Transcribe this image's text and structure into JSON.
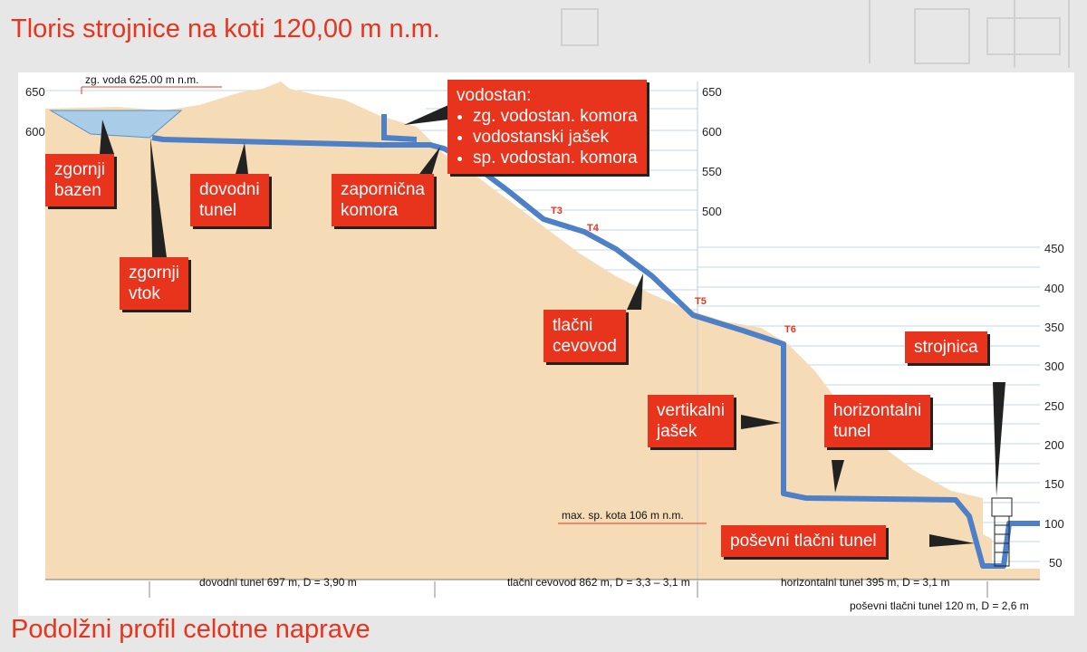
{
  "titles": {
    "top": "Tloris strojnice na koti 120,00 m n.m.",
    "bottom": "Podolžni profil celotne naprave"
  },
  "axes": {
    "left_ticks": [
      "650",
      "600"
    ],
    "mid_ticks": [
      "650",
      "600",
      "550",
      "500"
    ],
    "right_ticks": [
      "450",
      "400",
      "350",
      "300",
      "250",
      "200",
      "150",
      "100",
      "50"
    ]
  },
  "annotations": {
    "upper_water": "zg. voda 625.00 m n.m.",
    "max_lower": "max. sp. kota 106 m n.m."
  },
  "callouts": {
    "vodostan_title": "vodostan:",
    "vodostan_items": [
      "zg. vodostan. komora",
      "vodostanski jašek",
      "sp. vodostan. komora"
    ],
    "zgornji_bazen": [
      "zgornji",
      "bazen"
    ],
    "dovodni_tunel": [
      "dovodni",
      "tunel"
    ],
    "zapornicna_komora": [
      "zapornična",
      "komora"
    ],
    "zgornji_vtok": [
      "zgornji",
      "vtok"
    ],
    "tlacni_cevovod": [
      "tlačni",
      "cevovod"
    ],
    "vertikalni_jasek": [
      "vertikalni",
      "jašek"
    ],
    "horizontalni_tunel": [
      "horizontalni",
      "tunel"
    ],
    "strojnica": "strojnica",
    "posevni_tlacni_tunel": "poševni tlačni tunel"
  },
  "points": [
    "T3",
    "T4",
    "T5",
    "T6"
  ],
  "segments": {
    "dovodni": "dovodni tunel 697 m, D = 3,90 m",
    "tlacni": "tlačni cevovod 862 m, D = 3,3 – 3,1 m",
    "horizontalni": "horizontalni tunel 395 m, D = 3,1 m",
    "posevni": "poševni tlačni tunel 120 m, D = 2,6 m"
  },
  "colors": {
    "accent": "#e8341c",
    "terrain": "#f6dcb6",
    "pipe": "#4d80c6",
    "water": "#a9cde9"
  }
}
